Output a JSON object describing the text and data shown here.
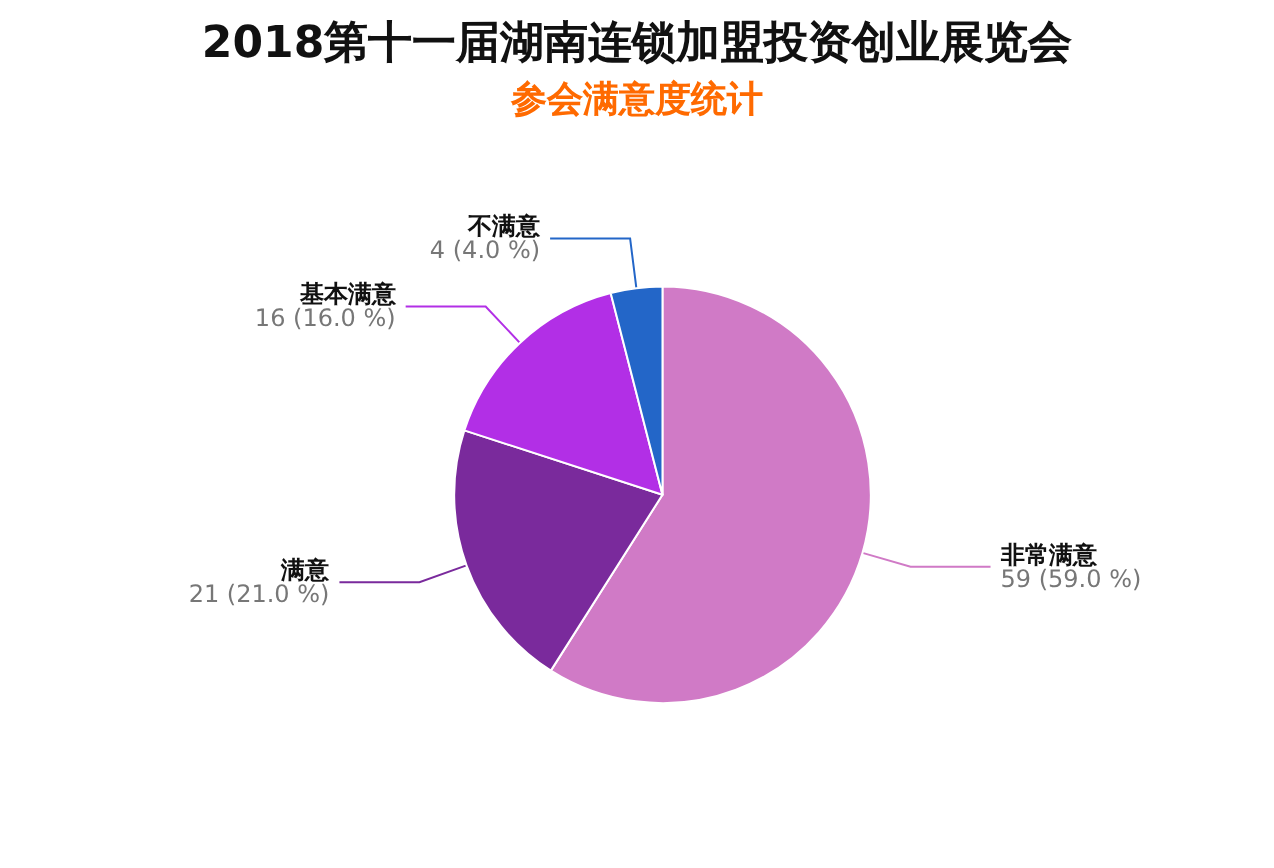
{
  "chart_data": {
    "type": "pie",
    "title": "2018第十一届湖南连锁加盟投资创业展览会",
    "subtitle": "参会满意度统计",
    "categories": [
      "非常满意",
      "满意",
      "基本满意",
      "不满意"
    ],
    "values": [
      59,
      21,
      16,
      4
    ],
    "colors": [
      "#d07ac6",
      "#7a2a9c",
      "#b22fe6",
      "#2366c8"
    ],
    "value_labels": [
      "59 (59.0 %)",
      "21 (21.0 %)",
      "16 (16.0 %)",
      "4 (4.0 %)"
    ]
  }
}
